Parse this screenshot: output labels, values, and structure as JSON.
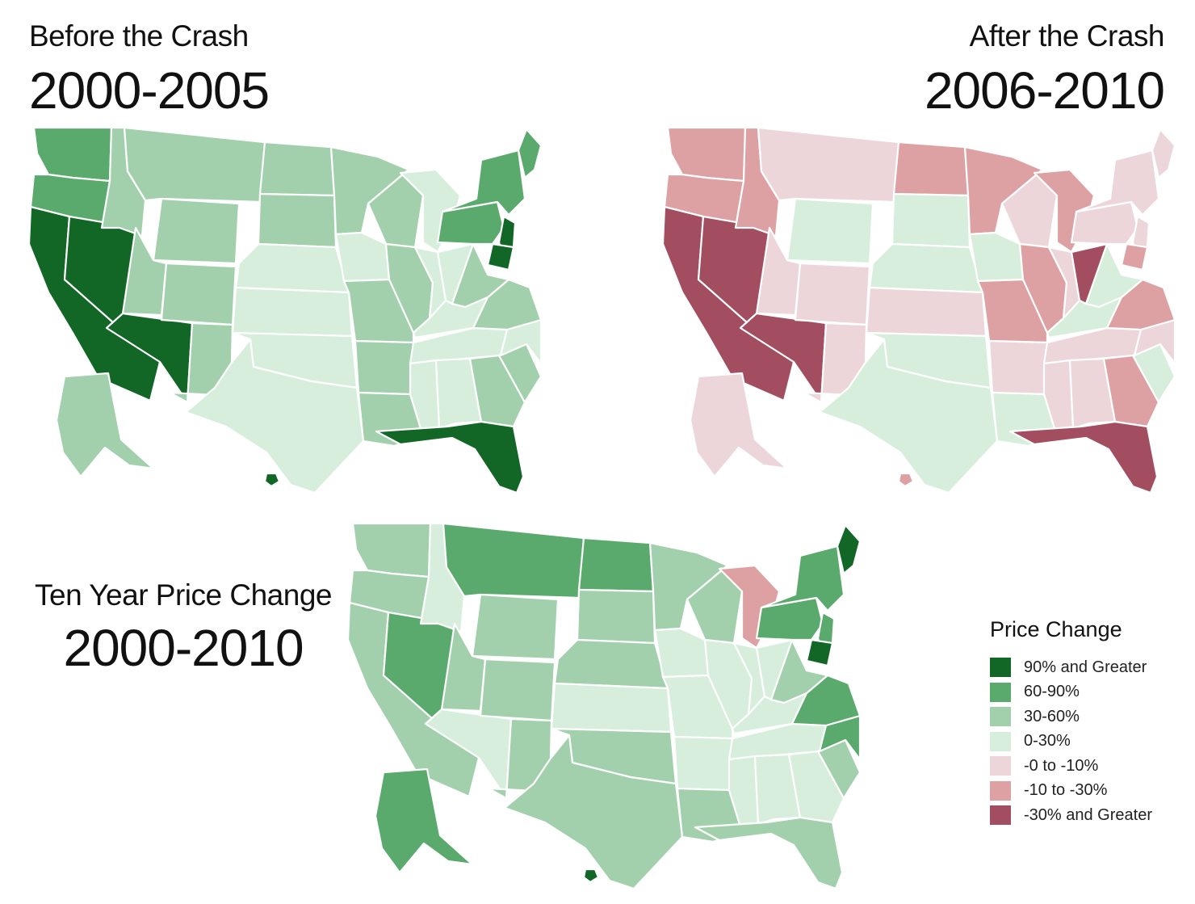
{
  "panels": [
    {
      "id": "before",
      "subtitle": "Before the Crash",
      "period": "2000-2005"
    },
    {
      "id": "after",
      "subtitle": "After the Crash",
      "period": "2006-2010"
    },
    {
      "id": "ten",
      "subtitle": "Ten Year Price Change",
      "period": "2000-2010"
    }
  ],
  "legend": {
    "title": "Price Change",
    "items": [
      {
        "label": "90% and Greater",
        "color": "#126626"
      },
      {
        "label": "60-90%",
        "color": "#5aa96d"
      },
      {
        "label": "30-60%",
        "color": "#a2d0ac"
      },
      {
        "label": "0-30%",
        "color": "#d6eedb"
      },
      {
        "label": "-0 to -10%",
        "color": "#ecd6da"
      },
      {
        "label": "-10 to -30%",
        "color": "#dea1a3"
      },
      {
        "label": "-30% and Greater",
        "color": "#a34d61"
      }
    ]
  },
  "map_data": {
    "type": "choropleth",
    "regions": [
      "WA",
      "OR",
      "CA",
      "NV",
      "ID",
      "MT",
      "WY",
      "UT",
      "AZ",
      "CO",
      "NM",
      "ND",
      "SD",
      "NE",
      "KS",
      "OK",
      "TX",
      "MN",
      "IA",
      "MO",
      "AR",
      "LA",
      "WI",
      "IL",
      "MI",
      "IN",
      "OH",
      "KY",
      "TN",
      "MS",
      "AL",
      "GA",
      "FL",
      "SC",
      "NC",
      "VA",
      "WV",
      "PA",
      "NY",
      "ME",
      "NJ",
      "MD",
      "AK",
      "HI"
    ],
    "before": {
      "WA": "60-90%",
      "OR": "60-90%",
      "CA": "90% and Greater",
      "NV": "90% and Greater",
      "ID": "30-60%",
      "MT": "30-60%",
      "WY": "30-60%",
      "UT": "30-60%",
      "AZ": "90% and Greater",
      "CO": "30-60%",
      "NM": "30-60%",
      "ND": "30-60%",
      "SD": "30-60%",
      "NE": "0-30%",
      "KS": "0-30%",
      "OK": "0-30%",
      "TX": "0-30%",
      "MN": "30-60%",
      "IA": "0-30%",
      "MO": "30-60%",
      "AR": "30-60%",
      "LA": "30-60%",
      "WI": "30-60%",
      "IL": "30-60%",
      "MI": "0-30%",
      "IN": "0-30%",
      "OH": "0-30%",
      "KY": "0-30%",
      "TN": "0-30%",
      "MS": "0-30%",
      "AL": "0-30%",
      "GA": "30-60%",
      "FL": "90% and Greater",
      "SC": "30-60%",
      "NC": "0-30%",
      "VA": "30-60%",
      "WV": "30-60%",
      "PA": "60-90%",
      "NY": "60-90%",
      "ME": "60-90%",
      "NJ": "90% and Greater",
      "MD": "90% and Greater",
      "AK": "30-60%",
      "HI": "90% and Greater"
    },
    "after": {
      "WA": "-10 to -30%",
      "OR": "-10 to -30%",
      "CA": "-30% and Greater",
      "NV": "-30% and Greater",
      "ID": "-10 to -30%",
      "MT": "-0 to -10%",
      "WY": "0-30%",
      "UT": "-0 to -10%",
      "AZ": "-30% and Greater",
      "CO": "-0 to -10%",
      "NM": "-0 to -10%",
      "ND": "-10 to -30%",
      "SD": "0-30%",
      "NE": "0-30%",
      "KS": "-0 to -10%",
      "OK": "0-30%",
      "TX": "0-30%",
      "MN": "-10 to -30%",
      "IA": "0-30%",
      "MO": "-10 to -30%",
      "AR": "-0 to -10%",
      "LA": "0-30%",
      "WI": "-0 to -10%",
      "IL": "-10 to -30%",
      "MI": "-10 to -30%",
      "IN": "-0 to -10%",
      "OH": "-30% and Greater",
      "KY": "0-30%",
      "TN": "-0 to -10%",
      "MS": "-0 to -10%",
      "AL": "-0 to -10%",
      "GA": "-10 to -30%",
      "FL": "-30% and Greater",
      "SC": "0-30%",
      "NC": "-0 to -10%",
      "VA": "-10 to -30%",
      "WV": "0-30%",
      "PA": "-0 to -10%",
      "NY": "-0 to -10%",
      "ME": "-0 to -10%",
      "NJ": "-0 to -10%",
      "MD": "-10 to -30%",
      "AK": "-0 to -10%",
      "HI": "-10 to -30%"
    },
    "ten": {
      "WA": "30-60%",
      "OR": "30-60%",
      "CA": "30-60%",
      "NV": "60-90%",
      "ID": "0-30%",
      "MT": "60-90%",
      "WY": "30-60%",
      "UT": "30-60%",
      "AZ": "0-30%",
      "CO": "30-60%",
      "NM": "30-60%",
      "ND": "60-90%",
      "SD": "30-60%",
      "NE": "30-60%",
      "KS": "0-30%",
      "OK": "30-60%",
      "TX": "30-60%",
      "MN": "30-60%",
      "IA": "0-30%",
      "MO": "0-30%",
      "AR": "0-30%",
      "LA": "30-60%",
      "WI": "30-60%",
      "IL": "0-30%",
      "MI": "-10 to -30%",
      "IN": "0-30%",
      "OH": "0-30%",
      "KY": "0-30%",
      "TN": "0-30%",
      "MS": "0-30%",
      "AL": "0-30%",
      "GA": "0-30%",
      "FL": "30-60%",
      "SC": "30-60%",
      "NC": "60-90%",
      "VA": "60-90%",
      "WV": "30-60%",
      "PA": "60-90%",
      "NY": "60-90%",
      "ME": "90% and Greater",
      "NJ": "60-90%",
      "MD": "90% and Greater",
      "AK": "60-90%",
      "HI": "90% and Greater"
    }
  }
}
